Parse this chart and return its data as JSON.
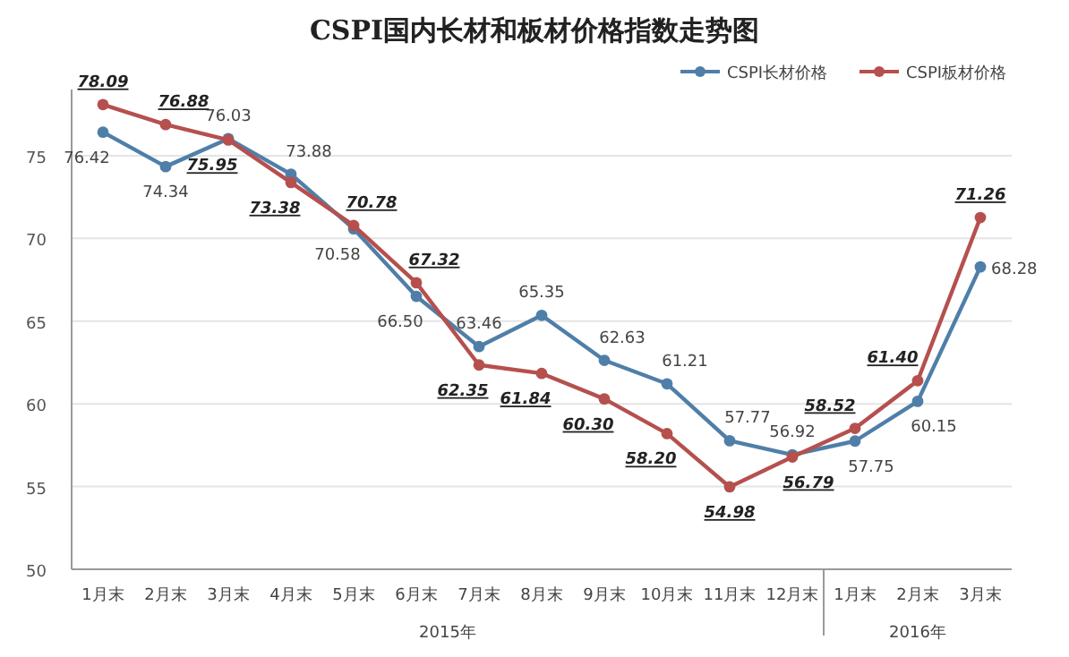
{
  "chart_data": {
    "type": "line",
    "title": "CSPI国内长材和板材价格指数走势图",
    "categories": [
      "1月末",
      "2月末",
      "3月末",
      "4月末",
      "5月末",
      "6月末",
      "7月末",
      "8月末",
      "9月末",
      "10月末",
      "11月末",
      "12月末",
      "1月末",
      "2月末",
      "3月末"
    ],
    "series": [
      {
        "name": "CSPI长材价格",
        "color": "#4f7fa8",
        "values": [
          76.42,
          74.34,
          76.03,
          73.88,
          70.58,
          66.5,
          63.46,
          65.35,
          62.63,
          61.21,
          57.77,
          56.92,
          57.75,
          60.15,
          68.28
        ],
        "value_labels": [
          "76.42",
          "74.34",
          "76.03",
          "73.88",
          "70.58",
          "66.50",
          "63.46",
          "65.35",
          "62.63",
          "61.21",
          "57.77",
          "56.92",
          "57.75",
          "60.15",
          "68.28"
        ]
      },
      {
        "name": "CSPI板材价格",
        "color": "#b5504e",
        "values": [
          78.09,
          76.88,
          75.95,
          73.38,
          70.78,
          67.32,
          62.35,
          61.84,
          60.3,
          58.2,
          54.98,
          56.79,
          58.52,
          61.4,
          71.26
        ],
        "value_labels": [
          "78.09",
          "76.88",
          "75.95",
          "73.38",
          "70.78",
          "67.32",
          "62.35",
          "61.84",
          "60.30",
          "58.20",
          "54.98",
          "56.79",
          "58.52",
          "61.40",
          "71.26"
        ]
      }
    ],
    "ylim": [
      50,
      79
    ],
    "yticks": [
      50,
      55,
      60,
      65,
      70,
      75
    ],
    "grid": "y",
    "marker": "circle",
    "line_style": "solid",
    "legend": "top right",
    "annotations": [
      "2015年",
      "2016年"
    ]
  }
}
